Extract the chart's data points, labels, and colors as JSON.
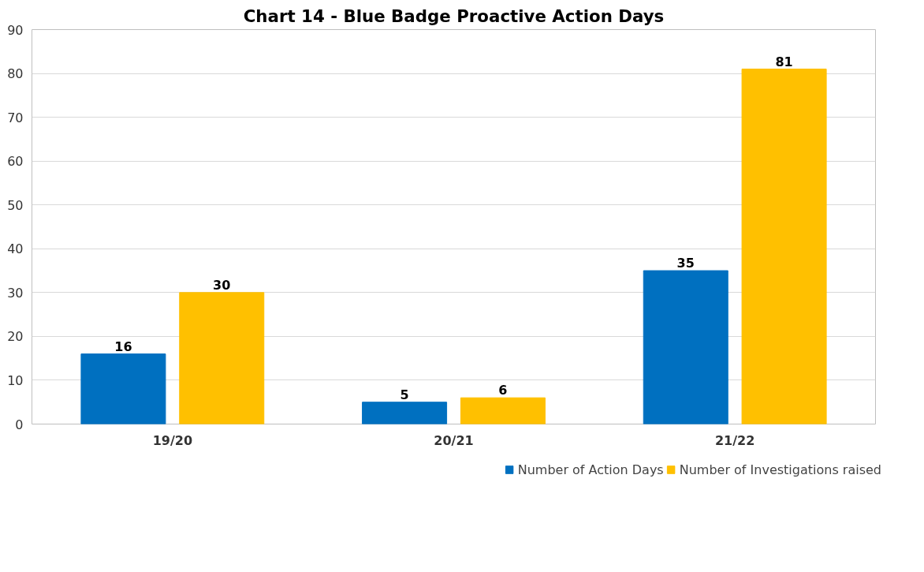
{
  "chart_data": {
    "type": "bar",
    "title": "Chart 14 - Blue Badge Proactive Action Days",
    "categories": [
      "19/20",
      "20/21",
      "21/22"
    ],
    "series": [
      {
        "name": "Number of Action Days",
        "color": "#0070c0",
        "values": [
          16,
          5,
          35
        ]
      },
      {
        "name": "Number of Investigations raised",
        "color": "#ffc000",
        "values": [
          30,
          6,
          81
        ]
      }
    ],
    "ylim": [
      0,
      90
    ],
    "yticks": [
      0,
      10,
      20,
      30,
      40,
      50,
      60,
      70,
      80,
      90
    ],
    "grid": "y",
    "legend": "bottom",
    "data_labels": true
  }
}
